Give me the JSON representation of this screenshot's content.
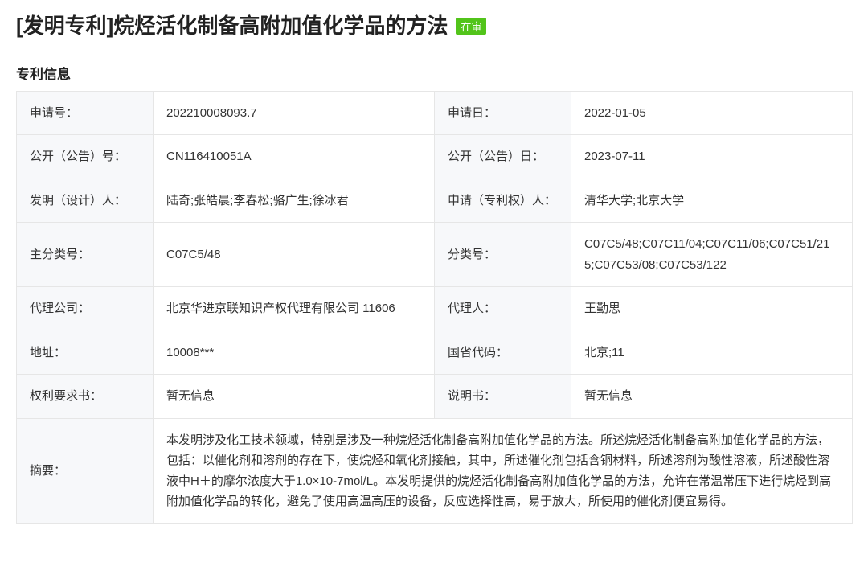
{
  "header": {
    "type_prefix": "[发明专利]",
    "title": "烷烃活化制备高附加值化学品的方法",
    "status": "在审"
  },
  "section_title": "专利信息",
  "rows": [
    {
      "l1": "申请号：",
      "v1": "202210008093.7",
      "l2": "申请日：",
      "v2": "2022-01-05"
    },
    {
      "l1": "公开（公告）号：",
      "v1": "CN116410051A",
      "l2": "公开（公告）日：",
      "v2": "2023-07-11"
    },
    {
      "l1": "发明（设计）人：",
      "v1": "陆奇;张皓晨;李春松;骆广生;徐冰君",
      "l2": "申请（专利权）人：",
      "v2": "清华大学;北京大学"
    },
    {
      "l1": "主分类号：",
      "v1": "C07C5/48",
      "l2": "分类号：",
      "v2": "C07C5/48;C07C11/04;C07C11/06;C07C51/215;C07C53/08;C07C53/122"
    },
    {
      "l1": "代理公司：",
      "v1": "北京华进京联知识产权代理有限公司 11606",
      "l2": "代理人：",
      "v2": "王勤思"
    },
    {
      "l1": "地址：",
      "v1": "10008***",
      "l2": "国省代码：",
      "v2": "北京;11"
    },
    {
      "l1": "权利要求书：",
      "v1": "暂无信息",
      "l2": "说明书：",
      "v2": "暂无信息"
    }
  ],
  "abstract": {
    "label": "摘要：",
    "value": "本发明涉及化工技术领域，特别是涉及一种烷烃活化制备高附加值化学品的方法。所述烷烃活化制备高附加值化学品的方法，包括：以催化剂和溶剂的存在下，使烷烃和氧化剂接触，其中，所述催化剂包括含铜材料，所述溶剂为酸性溶液，所述酸性溶液中H＋的摩尔浓度大于1.0×10‑7mol/L。本发明提供的烷烃活化制备高附加值化学品的方法，允许在常温常压下进行烷烃到高附加值化学品的转化，避免了使用高温高压的设备，反应选择性高，易于放大，所使用的催化剂便宜易得。"
  }
}
